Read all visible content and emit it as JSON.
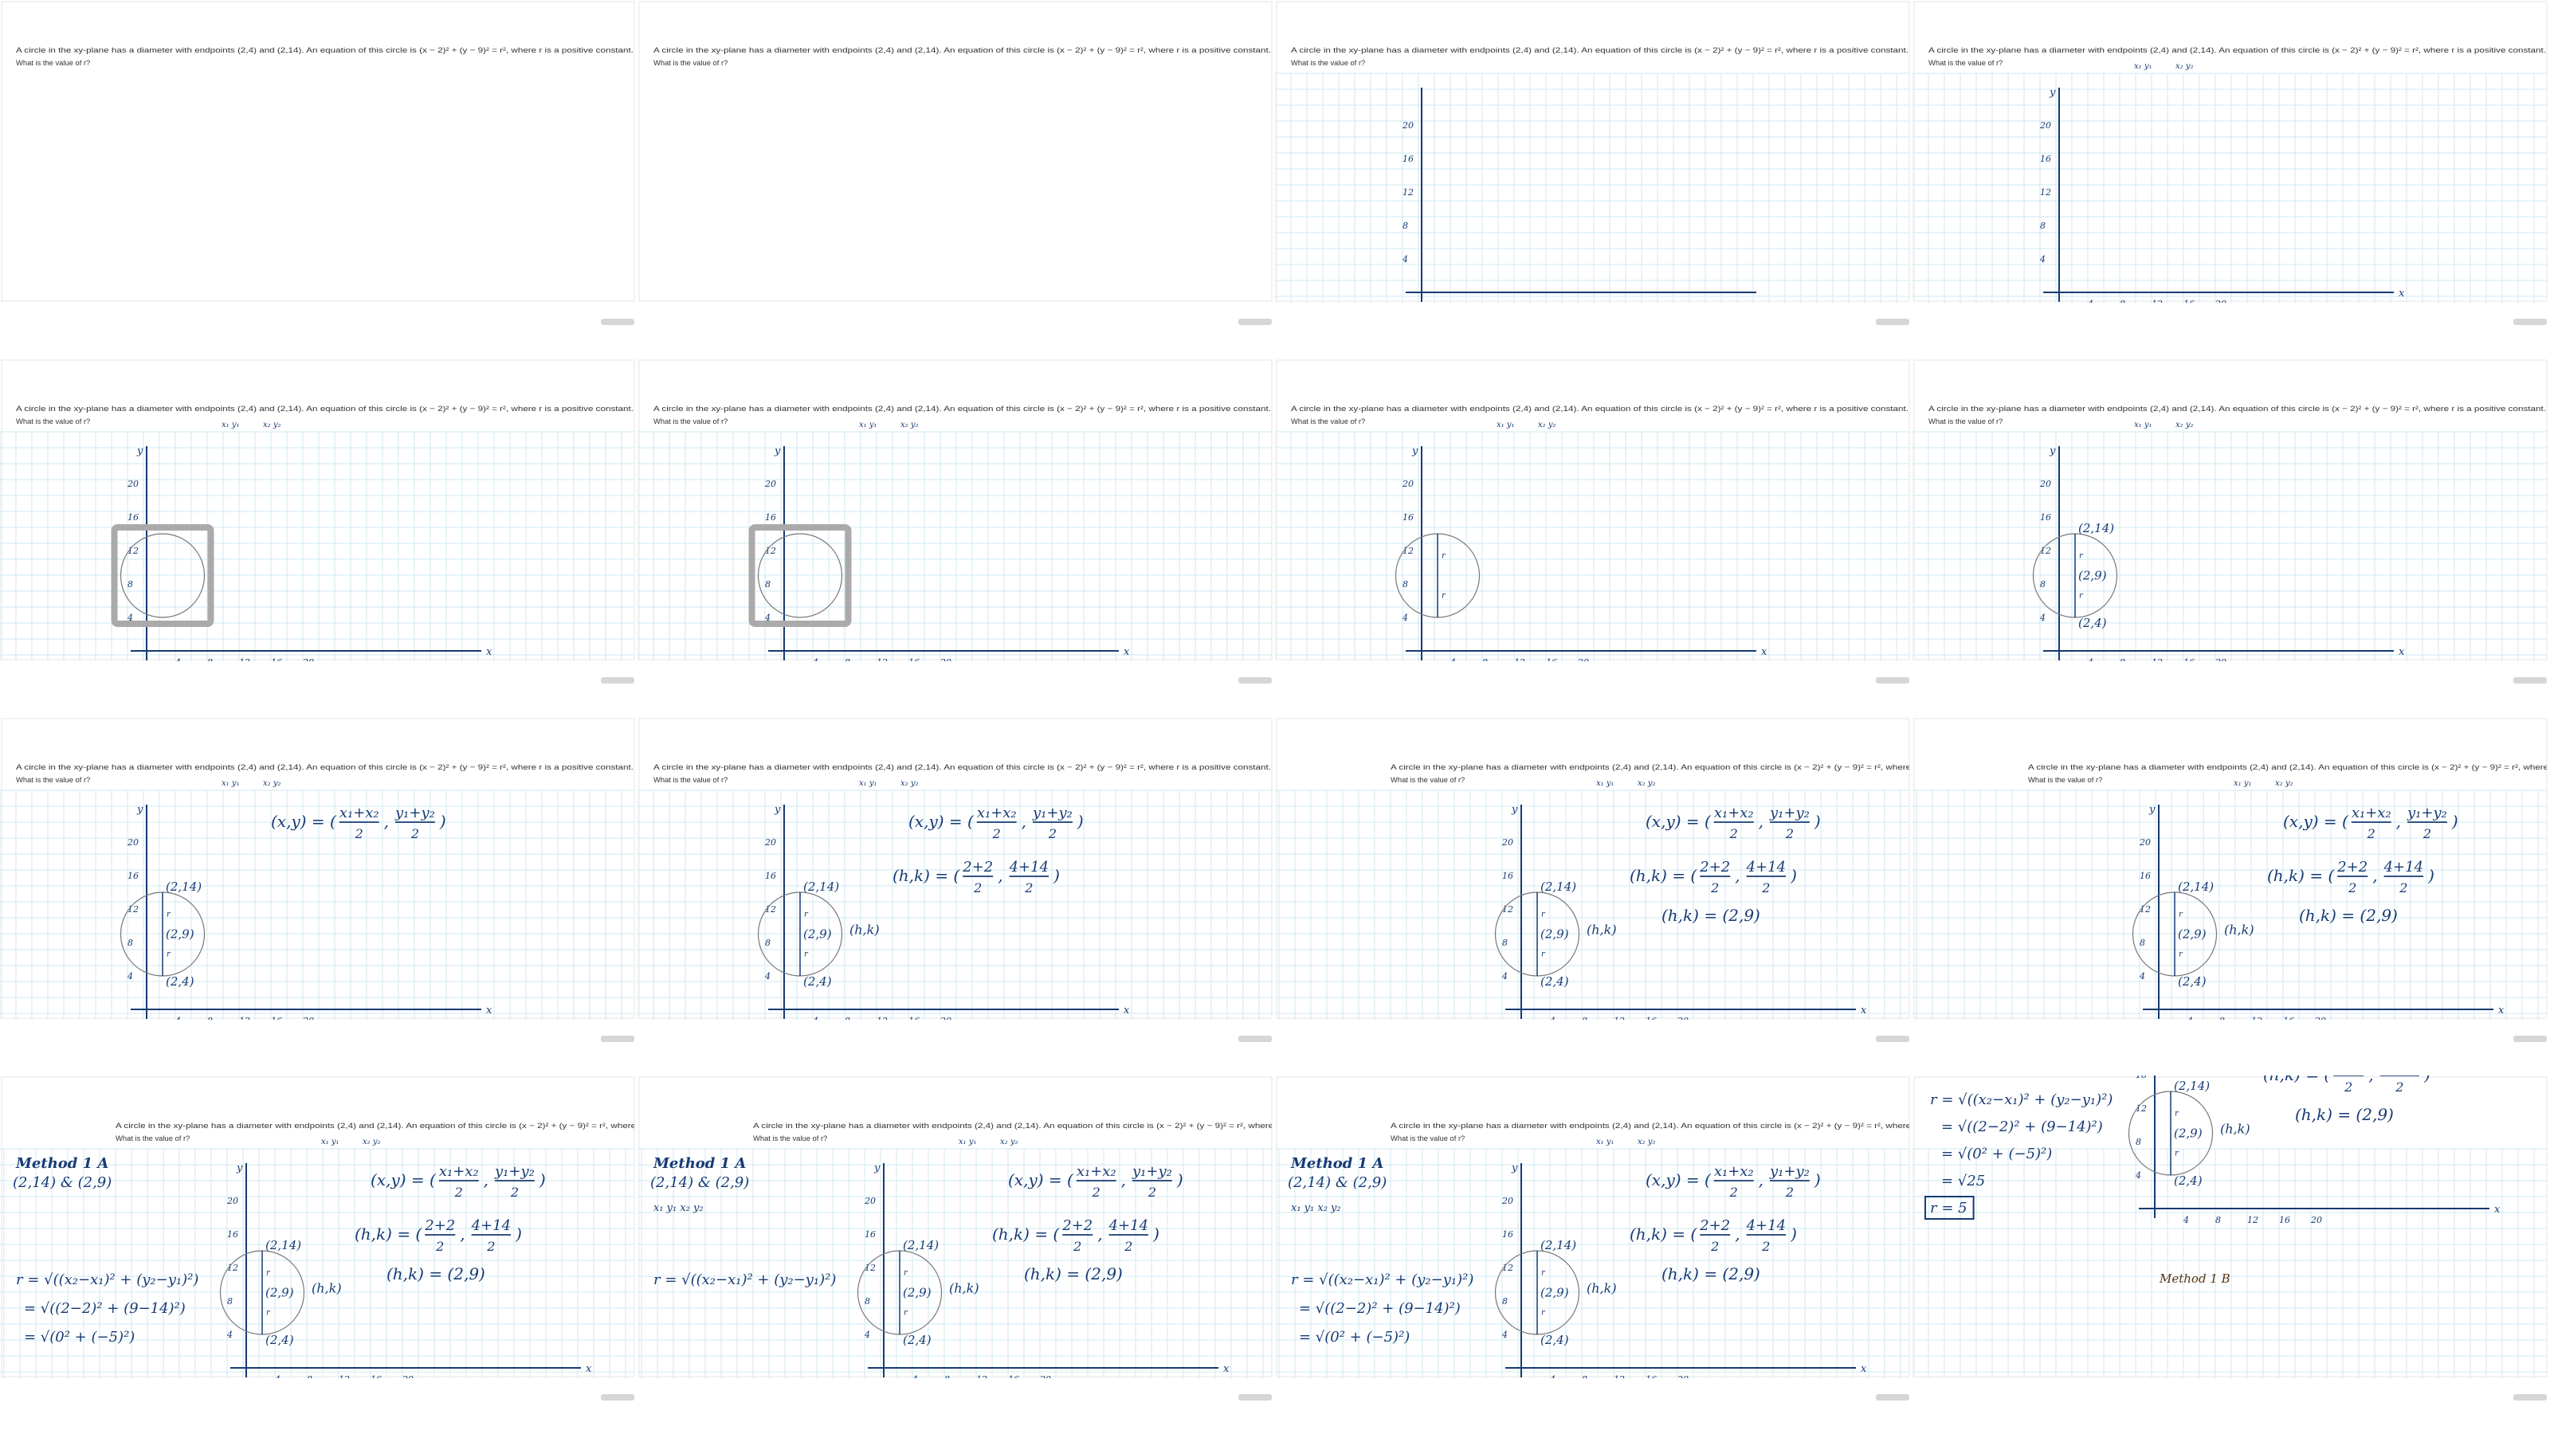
{
  "problem": [
    "A circle in the xy-plane has a diameter with endpoints (2,4) and (2,14). An equation of this circle is (x − 2)² + (y − 9)² = r², where r is a positive constant.",
    "What is the value of r?"
  ],
  "axis_labels": {
    "x": "x",
    "y": "y"
  },
  "x_ticks": [
    "4",
    "8",
    "12",
    "16",
    "20"
  ],
  "y_ticks": [
    "4",
    "8",
    "12",
    "16",
    "20"
  ],
  "points": {
    "top": "(2,14)",
    "center": "(2,9)",
    "bottom": "(2,4)"
  },
  "radius_label": "r",
  "center_label": "(h,k)",
  "midpoint": {
    "open": "(x,y) = (",
    "fractions": [
      [
        "x₁+x₂",
        "2"
      ],
      [
        "y₁+y₂",
        "2"
      ]
    ],
    "sep": ",",
    "close": ")"
  },
  "substitution": {
    "open": "(h,k) = (",
    "fractions": [
      [
        "2+2",
        "2"
      ],
      [
        "4+14",
        "2"
      ]
    ],
    "sep": ",",
    "close": ")"
  },
  "result": "(h,k) = (2,9)",
  "endpoint_names": [
    "x₁  y₁",
    "x₂  y₂"
  ],
  "method": "Method 1 A",
  "endpoints_line": "(2,14) & (2,9)",
  "endpoint_subscripts": "x₁  y₁    x₂  y₂",
  "distance": [
    "r = √((x₂−x₁)² + (y₂−y₁)²)",
    "= √((2−2)² + (9−14)²)",
    "= √(0² + (−5)²)",
    "= √25",
    "r = 5"
  ],
  "next_method": "Method 1 B"
}
